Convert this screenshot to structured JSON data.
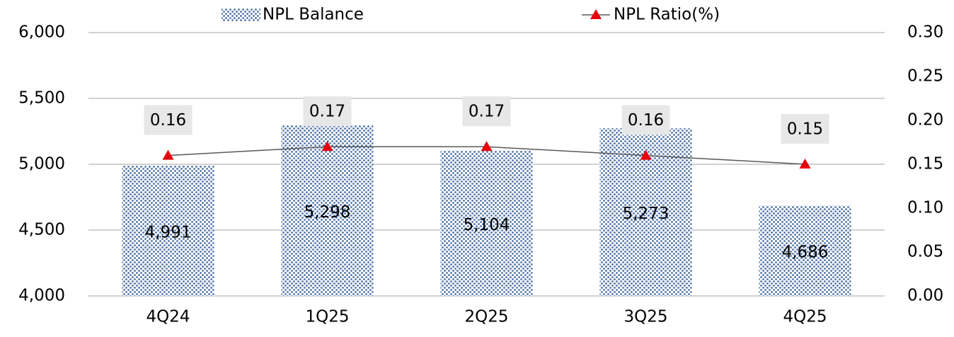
{
  "chart_data": {
    "type": "bar",
    "categories": [
      "4Q24",
      "1Q25",
      "2Q25",
      "3Q25",
      "4Q25"
    ],
    "series": [
      {
        "name": "NPL Balance",
        "type": "bar",
        "color": "#4a6fa5",
        "values": [
          4991,
          5298,
          5104,
          5273,
          4686
        ],
        "value_labels": [
          "4,991",
          "5,298",
          "5,104",
          "5,273",
          "4,686"
        ]
      },
      {
        "name": "NPL Ratio(%)",
        "type": "line",
        "axis": "y2",
        "color": "#595959",
        "marker_color": "#e8000b",
        "values": [
          0.16,
          0.17,
          0.17,
          0.16,
          0.15
        ]
      }
    ],
    "ylim": [
      4000,
      6000
    ],
    "yticks": [
      {
        "value": 4000,
        "label": "4,000"
      },
      {
        "value": 4500,
        "label": "4,500"
      },
      {
        "value": 5000,
        "label": "5,000"
      },
      {
        "value": 5500,
        "label": "5,500"
      },
      {
        "value": 6000,
        "label": "6,000"
      }
    ],
    "y2lim": [
      0,
      0.3
    ],
    "y2ticks": [
      {
        "value": 0,
        "label": "0.00"
      },
      0.05,
      {
        "value": 0.1,
        "label": "0.10"
      },
      0.15,
      {
        "value": 0.2,
        "label": "0.20"
      },
      0.25,
      {
        "value": 0.3,
        "label": "0.30"
      }
    ],
    "grid": true,
    "legend": "top"
  }
}
